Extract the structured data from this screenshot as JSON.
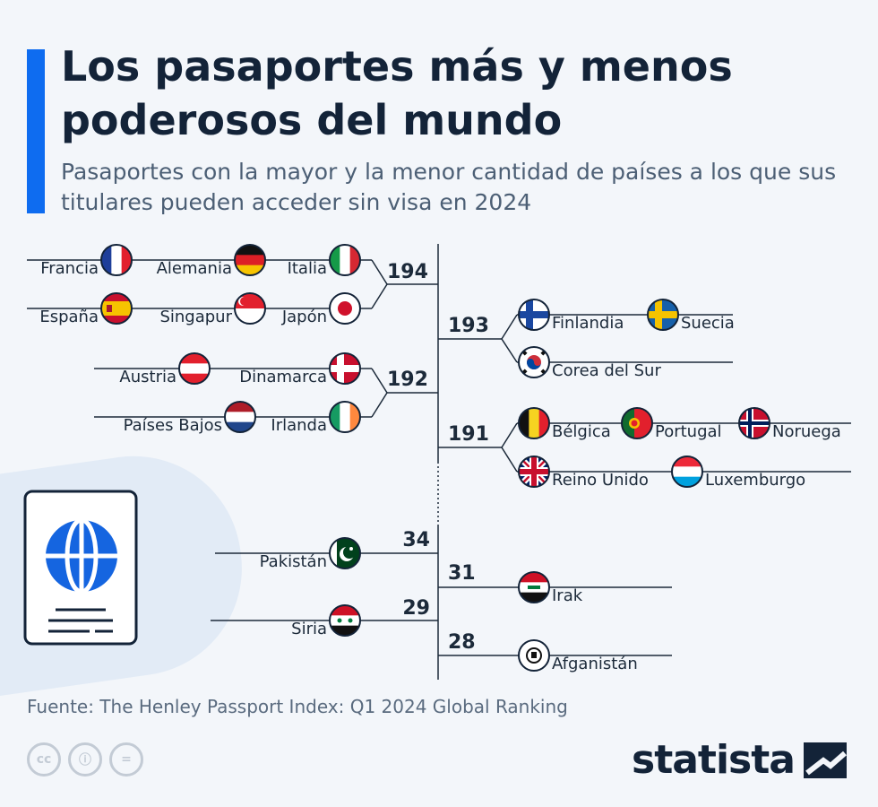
{
  "title": "Los pasaportes más y menos poderosos del mundo",
  "subtitle": "Pasaportes con la mayor y la menor cantidad de países a los que sus titulares pueden acceder sin visa en 2024",
  "source": "Fuente: The Henley Passport Index: Q1 2024 Global Ranking",
  "brand": "statista",
  "license_icons": [
    "cc",
    "ⓘ",
    "="
  ],
  "colors": {
    "accent": "#0e6cf0",
    "text": "#132338",
    "line": "#1c2a3a",
    "globe": "#1565e0"
  },
  "chart_data": {
    "type": "tree",
    "groups": [
      {
        "value": 194,
        "countries": [
          "Francia",
          "Alemania",
          "Italia",
          "España",
          "Singapur",
          "Japón"
        ]
      },
      {
        "value": 193,
        "countries": [
          "Finlandia",
          "Suecia",
          "Corea del Sur"
        ]
      },
      {
        "value": 192,
        "countries": [
          "Austria",
          "Dinamarca",
          "Países Bajos",
          "Irlanda"
        ]
      },
      {
        "value": 191,
        "countries": [
          "Bélgica",
          "Portugal",
          "Noruega",
          "Reino Unido",
          "Luxemburgo"
        ]
      },
      {
        "value": 34,
        "countries": [
          "Pakistán"
        ]
      },
      {
        "value": 31,
        "countries": [
          "Irak"
        ]
      },
      {
        "value": 29,
        "countries": [
          "Siria"
        ]
      },
      {
        "value": 28,
        "countries": [
          "Afganistán"
        ]
      }
    ]
  }
}
